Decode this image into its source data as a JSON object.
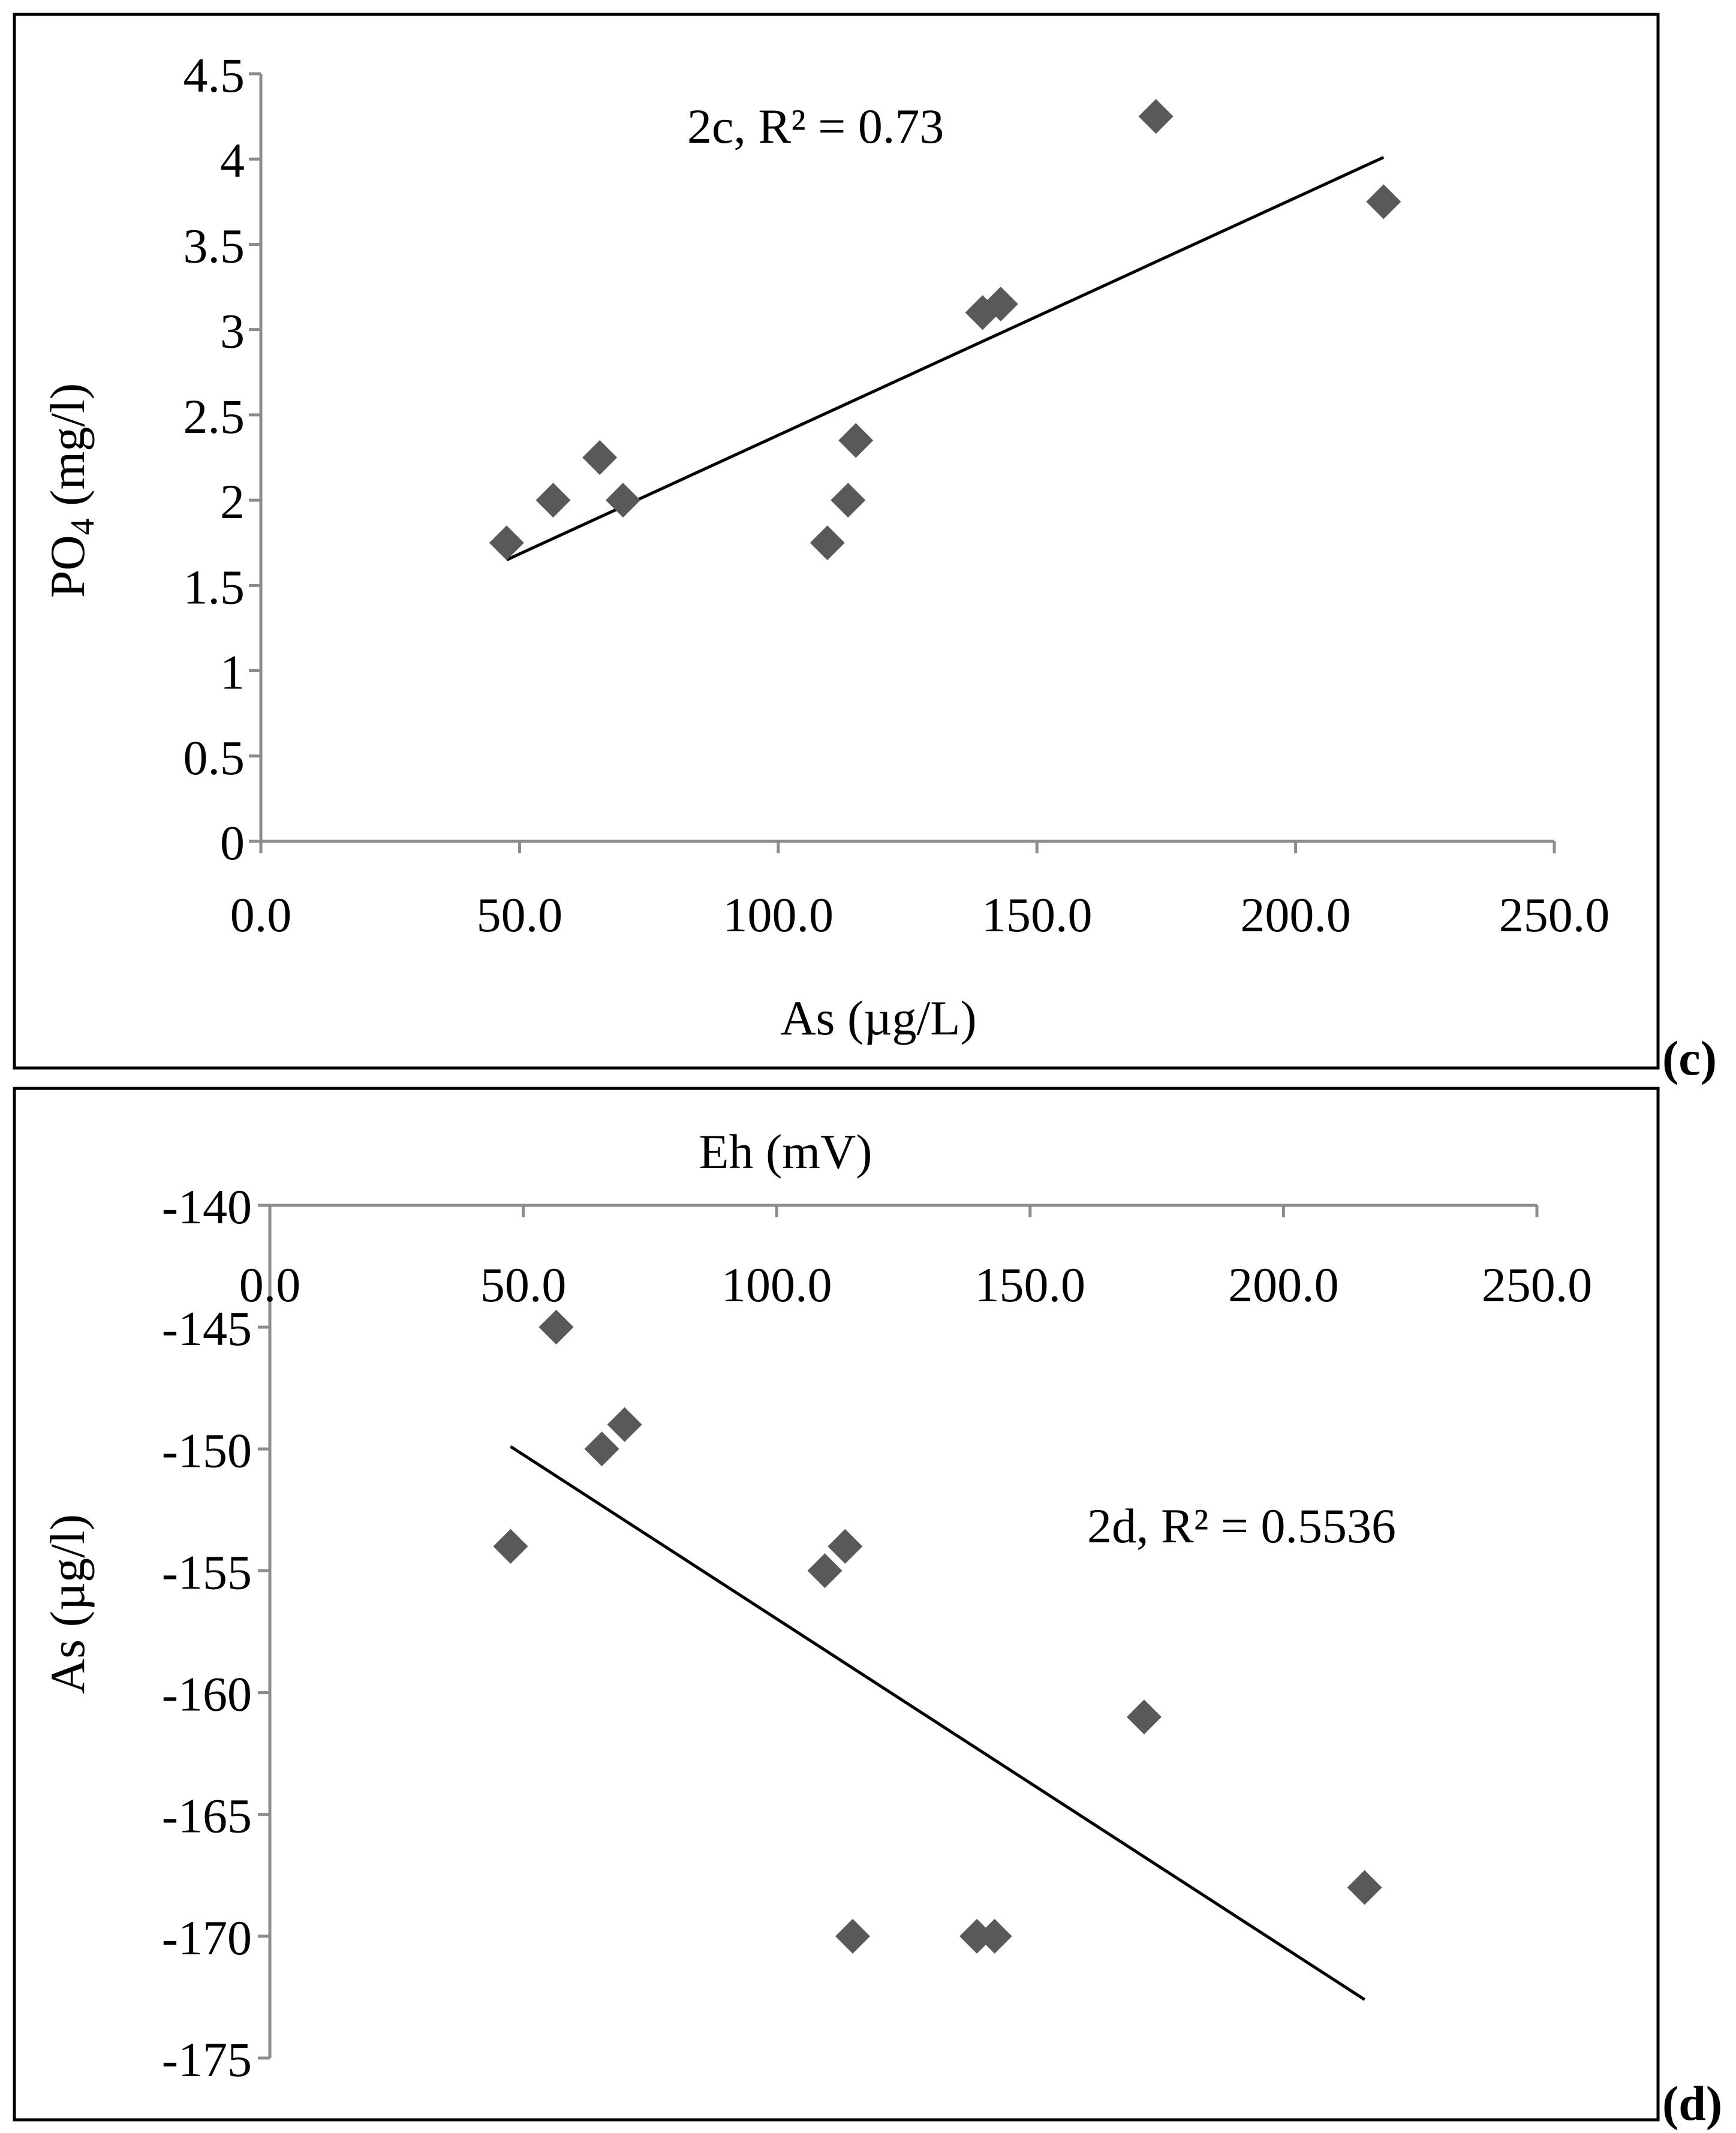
{
  "chart_data": [
    {
      "id": "c",
      "type": "scatter",
      "panel_label": "(c)",
      "annotation": "2c, R² = 0.73",
      "xlabel": "As (µg/L)",
      "ylabel_main": "PO",
      "ylabel_sub": "4",
      "ylabel_tail": " (mg/l)",
      "xlim": [
        0,
        250
      ],
      "ylim": [
        0,
        4.5
      ],
      "xticks": [
        "0.0",
        "50.0",
        "100.0",
        "150.0",
        "200.0",
        "250.0"
      ],
      "yticks": [
        "0",
        "0.5",
        "1",
        "1.5",
        "2",
        "2.5",
        "3",
        "3.5",
        "4",
        "4.5"
      ],
      "x": [
        47.5,
        56.5,
        65.5,
        70,
        109.5,
        113.5,
        115,
        139.5,
        143,
        173,
        217
      ],
      "y": [
        1.75,
        2.0,
        2.25,
        2.0,
        1.75,
        2.0,
        2.35,
        3.1,
        3.15,
        4.25,
        3.75
      ],
      "trendline": {
        "x": [
          47.5,
          217
        ],
        "y": [
          1.65,
          4.01
        ]
      },
      "marker_color": "#595959",
      "line_color": "#000000"
    },
    {
      "id": "d",
      "type": "scatter",
      "panel_label": "(d)",
      "annotation": "2d, R² = 0.5536",
      "xlabel": "Eh (mV)",
      "ylabel": "As (µg/l)",
      "xlim": [
        0,
        250
      ],
      "ylim": [
        -175,
        -140
      ],
      "xticks": [
        "0.0",
        "50.0",
        "100.0",
        "150.0",
        "200.0",
        "250.0"
      ],
      "yticks": [
        "-140",
        "-145",
        "-150",
        "-155",
        "-160",
        "-165",
        "-170",
        "-175"
      ],
      "x": [
        47.5,
        56.5,
        65.5,
        70,
        109.5,
        113.5,
        115,
        139.5,
        143,
        172.5,
        216
      ],
      "y": [
        -154,
        -145,
        -150,
        -149,
        -155,
        -154,
        -170,
        -170,
        -170,
        -161,
        -168
      ],
      "trendline": {
        "x": [
          47.5,
          216
        ],
        "y": [
          -149.9,
          -172.6
        ]
      },
      "marker_color": "#595959",
      "line_color": "#000000"
    }
  ]
}
